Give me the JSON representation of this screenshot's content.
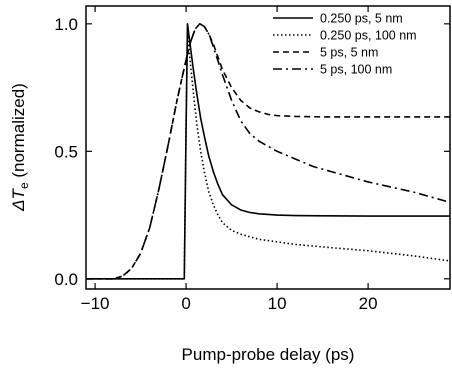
{
  "chart_data": {
    "type": "line",
    "xlabel": "Pump-probe delay (ps)",
    "ylabel_symbol": "ΔT",
    "ylabel_subscript": "e",
    "ylabel_suffix": " (normalized)",
    "xlim": [
      -11,
      29
    ],
    "ylim": [
      -0.04,
      1.07
    ],
    "xticks": [
      -10,
      0,
      10,
      20
    ],
    "xtick_labels": [
      "−10",
      "0",
      "10",
      "20"
    ],
    "yticks": [
      0.0,
      0.5,
      1.0
    ],
    "ytick_labels": [
      "0.0",
      "0.5",
      "1.0"
    ],
    "grid": false,
    "legend_position": "top-right",
    "series": [
      {
        "name": "0.250 ps, 5 nm",
        "dash": "solid",
        "x": [
          -11,
          -1.0,
          -0.2,
          0.0,
          0.15,
          0.4,
          0.8,
          1.2,
          1.6,
          2,
          2.5,
          3,
          3.5,
          4,
          5,
          6,
          7,
          8,
          10,
          12,
          15,
          20,
          25,
          29
        ],
        "y": [
          0.0,
          0.0,
          0.0,
          0.6,
          1.0,
          0.93,
          0.82,
          0.72,
          0.63,
          0.56,
          0.48,
          0.42,
          0.37,
          0.33,
          0.29,
          0.27,
          0.26,
          0.255,
          0.25,
          0.248,
          0.247,
          0.246,
          0.246,
          0.246
        ]
      },
      {
        "name": "0.250 ps, 100 nm",
        "dash": "dotted",
        "x": [
          -11,
          -1.0,
          -0.2,
          0.0,
          0.15,
          0.4,
          0.8,
          1.2,
          1.6,
          2,
          2.5,
          3,
          3.5,
          4,
          5,
          6,
          7,
          8,
          10,
          12,
          15,
          20,
          25,
          29
        ],
        "y": [
          0.0,
          0.0,
          0.0,
          0.6,
          0.98,
          0.87,
          0.73,
          0.6,
          0.5,
          0.42,
          0.34,
          0.29,
          0.25,
          0.22,
          0.19,
          0.175,
          0.165,
          0.155,
          0.145,
          0.135,
          0.125,
          0.11,
          0.09,
          0.07
        ]
      },
      {
        "name": "5 ps, 5 nm",
        "dash": "dashed",
        "x": [
          -11,
          -8,
          -7,
          -6,
          -5,
          -4,
          -3,
          -2,
          -1,
          0,
          0.5,
          1,
          1.5,
          2,
          2.5,
          3,
          3.5,
          4,
          5,
          6,
          7,
          8,
          9,
          10,
          12,
          15,
          20,
          25,
          29
        ],
        "y": [
          0.0,
          0.0,
          0.01,
          0.04,
          0.1,
          0.2,
          0.35,
          0.52,
          0.7,
          0.86,
          0.93,
          0.98,
          1.0,
          0.99,
          0.96,
          0.92,
          0.87,
          0.82,
          0.75,
          0.7,
          0.67,
          0.655,
          0.645,
          0.64,
          0.637,
          0.635,
          0.635,
          0.635,
          0.635
        ]
      },
      {
        "name": "5 ps, 100 nm",
        "dash": "dashdot",
        "x": [
          -11,
          -8,
          -7,
          -6,
          -5,
          -4,
          -3,
          -2,
          -1,
          0,
          0.5,
          1,
          1.5,
          2,
          2.5,
          3,
          4,
          5,
          6,
          7,
          8,
          10,
          12,
          14,
          17,
          20,
          25,
          29
        ],
        "y": [
          0.0,
          0.0,
          0.01,
          0.04,
          0.1,
          0.2,
          0.35,
          0.52,
          0.7,
          0.86,
          0.93,
          0.98,
          1.0,
          0.99,
          0.96,
          0.91,
          0.8,
          0.7,
          0.62,
          0.57,
          0.54,
          0.5,
          0.47,
          0.44,
          0.41,
          0.38,
          0.34,
          0.3
        ]
      }
    ]
  }
}
